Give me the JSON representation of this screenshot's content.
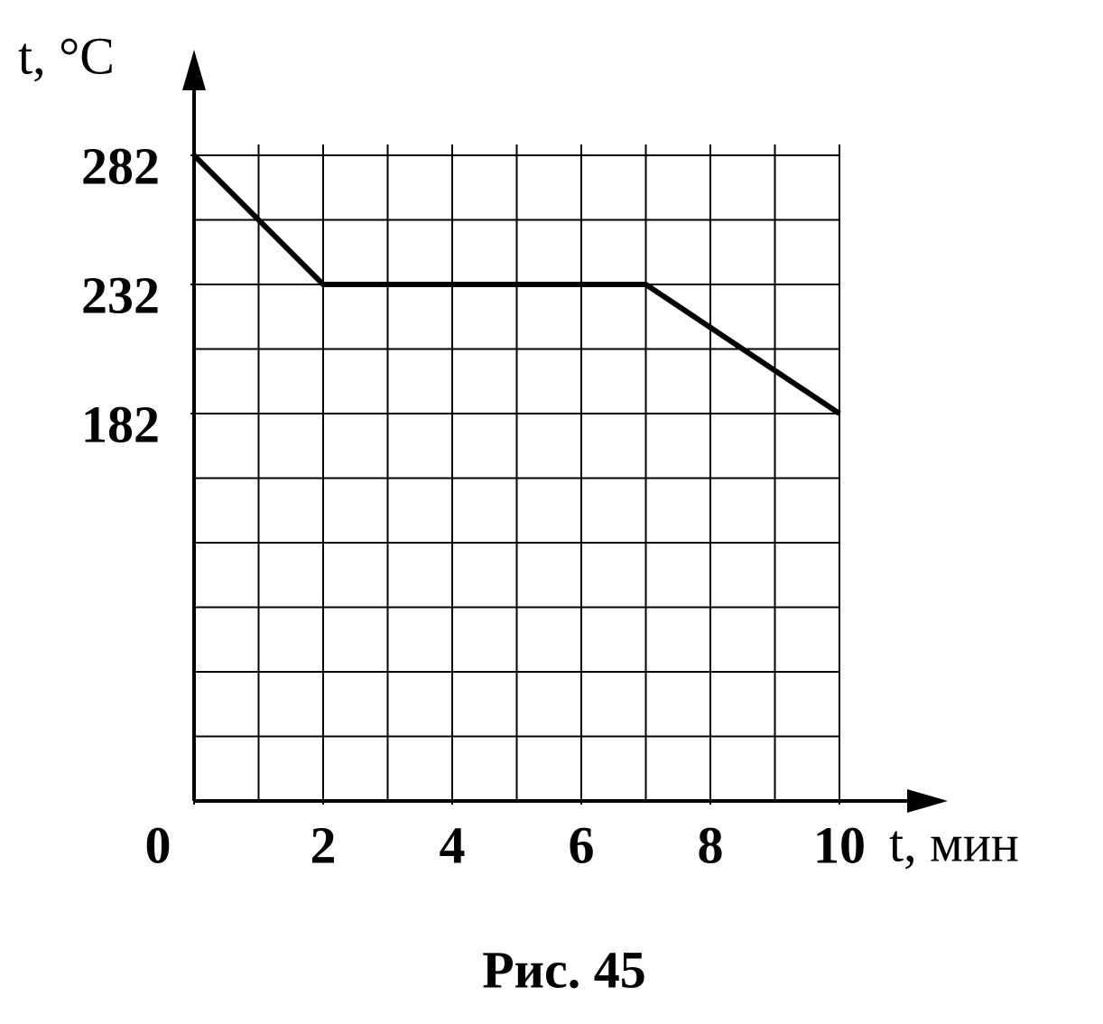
{
  "chart_data": {
    "type": "line",
    "caption": "Рис. 45",
    "x_label": "t, мин",
    "y_label": "t, °C",
    "x": [
      0,
      2,
      7,
      10
    ],
    "series": [
      {
        "name": "t",
        "color": "#000000",
        "values": [
          282,
          232,
          232,
          182
        ]
      }
    ],
    "xlim": [
      0,
      10
    ],
    "xticks": [
      0,
      2,
      4,
      6,
      8,
      10
    ],
    "ylim": [
      32,
      282
    ],
    "yticks": [
      282,
      232,
      182
    ],
    "grid": true
  }
}
